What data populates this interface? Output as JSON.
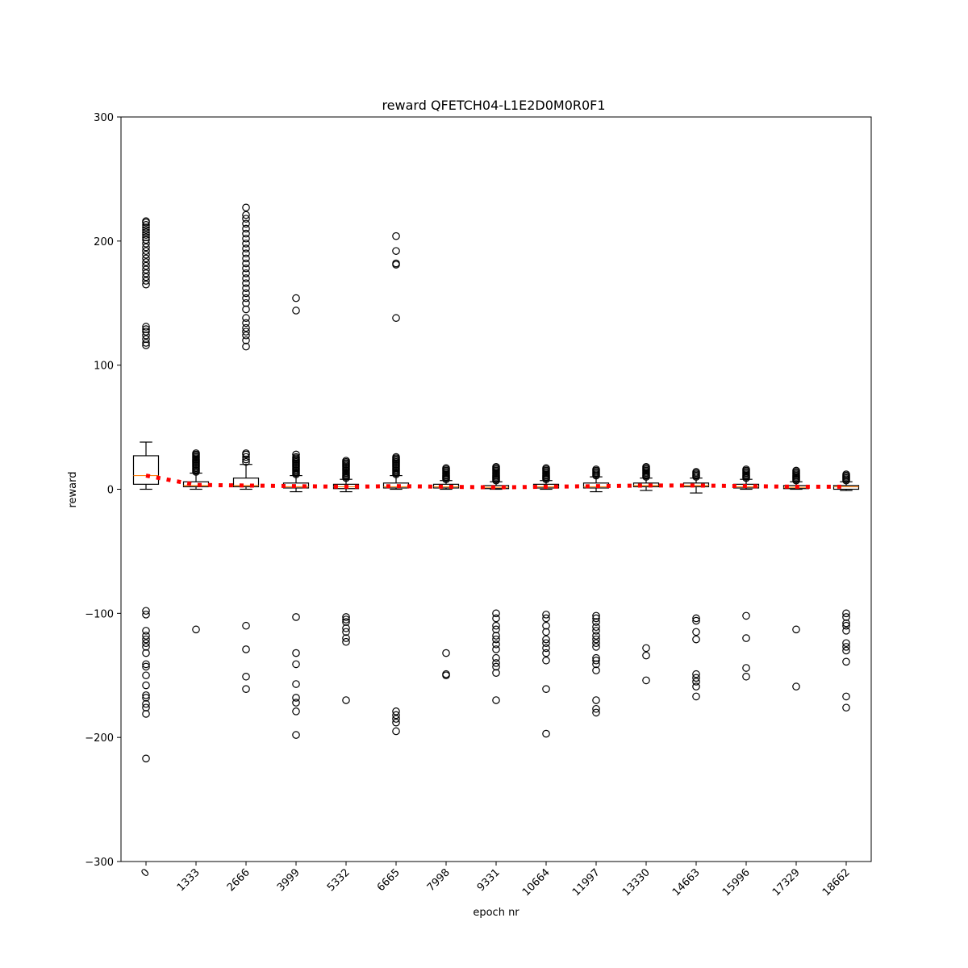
{
  "chart_data": {
    "type": "box",
    "title": "reward QFETCH04-L1E2D0M0R0F1",
    "xlabel": "epoch nr",
    "ylabel": "reward",
    "ylim": [
      -300,
      300
    ],
    "yticks": [
      -300,
      -200,
      -100,
      0,
      100,
      200,
      300
    ],
    "grid": false,
    "categories": [
      "0",
      "1333",
      "2666",
      "3999",
      "5332",
      "6665",
      "7998",
      "9331",
      "10664",
      "11997",
      "13330",
      "14663",
      "15996",
      "17329",
      "18662"
    ],
    "boxes": [
      {
        "q1": 4,
        "median": 11,
        "q3": 27,
        "whisker_low": 0,
        "whisker_high": 38,
        "outliers_high": [
          116,
          118,
          121,
          124,
          127,
          129,
          131,
          165,
          168,
          171,
          174,
          177,
          180,
          183,
          186,
          189,
          192,
          195,
          198,
          201,
          203,
          205,
          207,
          209,
          211,
          213,
          215,
          216
        ],
        "outliers_low": [
          -98,
          -101,
          -114,
          -118,
          -121,
          -124,
          -127,
          -132,
          -141,
          -143,
          -150,
          -158,
          -166,
          -168,
          -173,
          -176,
          -181,
          -217
        ]
      },
      {
        "q1": 2,
        "median": 3,
        "q3": 6,
        "whisker_low": 0,
        "whisker_high": 13,
        "outliers_high": [
          14,
          15,
          16,
          17,
          18,
          19,
          20,
          21,
          22,
          23,
          24,
          25,
          26,
          27,
          28,
          29
        ],
        "outliers_low": [
          -113
        ]
      },
      {
        "q1": 2,
        "median": 3,
        "q3": 9,
        "whisker_low": 0,
        "whisker_high": 20,
        "outliers_high": [
          22,
          24,
          26,
          28,
          29,
          115,
          120,
          124,
          127,
          130,
          134,
          138,
          145,
          150,
          154,
          158,
          162,
          166,
          170,
          174,
          178,
          182,
          186,
          190,
          194,
          198,
          202,
          206,
          210,
          214,
          218,
          221,
          227
        ],
        "outliers_low": [
          -110,
          -129,
          -151,
          -161
        ]
      },
      {
        "q1": 1,
        "median": 2,
        "q3": 5,
        "whisker_low": -2,
        "whisker_high": 11,
        "outliers_high": [
          12,
          13,
          14,
          15,
          16,
          17,
          18,
          19,
          20,
          21,
          22,
          23,
          24,
          25,
          26,
          28,
          144,
          154
        ],
        "outliers_low": [
          -103,
          -132,
          -141,
          -157,
          -168,
          -172,
          -179,
          -198
        ]
      },
      {
        "q1": 0.5,
        "median": 2,
        "q3": 4,
        "whisker_low": -2,
        "whisker_high": 8,
        "outliers_high": [
          9,
          10,
          11,
          12,
          13,
          14,
          15,
          16,
          17,
          18,
          19,
          20,
          21,
          22,
          23
        ],
        "outliers_low": [
          -103,
          -105,
          -107,
          -112,
          -115,
          -120,
          -123,
          -170
        ]
      },
      {
        "q1": 1,
        "median": 2,
        "q3": 5,
        "whisker_low": 0,
        "whisker_high": 11,
        "outliers_high": [
          12,
          13,
          14,
          15,
          16,
          17,
          18,
          19,
          20,
          21,
          22,
          23,
          24,
          25,
          26,
          138,
          181,
          182,
          192,
          204
        ],
        "outliers_low": [
          -179,
          -182,
          -185,
          -188,
          -195
        ]
      },
      {
        "q1": 1,
        "median": 2,
        "q3": 4,
        "whisker_low": 0,
        "whisker_high": 7,
        "outliers_high": [
          8,
          9,
          10,
          11,
          12,
          13,
          14,
          15,
          16,
          17
        ],
        "outliers_low": [
          -132,
          -149,
          -150
        ]
      },
      {
        "q1": 0.5,
        "median": 1.5,
        "q3": 3,
        "whisker_low": 0,
        "whisker_high": 6,
        "outliers_high": [
          7,
          8,
          9,
          10,
          11,
          12,
          13,
          14,
          15,
          16,
          17,
          18
        ],
        "outliers_low": [
          -100,
          -104,
          -110,
          -113,
          -118,
          -121,
          -125,
          -129,
          -136,
          -140,
          -143,
          -148,
          -170
        ]
      },
      {
        "q1": 1,
        "median": 2,
        "q3": 4,
        "whisker_low": 0,
        "whisker_high": 7,
        "outliers_high": [
          8,
          9,
          10,
          11,
          12,
          13,
          14,
          15,
          16,
          17
        ],
        "outliers_low": [
          -101,
          -104,
          -110,
          -115,
          -121,
          -124,
          -128,
          -132,
          -138,
          -161,
          -197
        ]
      },
      {
        "q1": 1,
        "median": 2,
        "q3": 5,
        "whisker_low": -2,
        "whisker_high": 10,
        "outliers_high": [
          11,
          12,
          13,
          14,
          15,
          16
        ],
        "outliers_low": [
          -102,
          -104,
          -107,
          -111,
          -114,
          -118,
          -121,
          -124,
          -127,
          -136,
          -138,
          -141,
          -146,
          -170,
          -177,
          -180
        ]
      },
      {
        "q1": 2,
        "median": 3,
        "q3": 5,
        "whisker_low": -1,
        "whisker_high": 9,
        "outliers_high": [
          10,
          11,
          12,
          13,
          14,
          15,
          16,
          17,
          18
        ],
        "outliers_low": [
          -128,
          -134,
          -154
        ]
      },
      {
        "q1": 2,
        "median": 3,
        "q3": 5,
        "whisker_low": -3,
        "whisker_high": 9,
        "outliers_high": [
          10,
          11,
          12,
          13,
          14
        ],
        "outliers_low": [
          -104,
          -106,
          -115,
          -121,
          -149,
          -152,
          -155,
          -159,
          -167
        ]
      },
      {
        "q1": 1,
        "median": 2,
        "q3": 4,
        "whisker_low": 0,
        "whisker_high": 8,
        "outliers_high": [
          9,
          10,
          11,
          12,
          13,
          14,
          15,
          16
        ],
        "outliers_low": [
          -102,
          -120,
          -144,
          -151
        ]
      },
      {
        "q1": 0.5,
        "median": 1.5,
        "q3": 3,
        "whisker_low": 0,
        "whisker_high": 6,
        "outliers_high": [
          7,
          8,
          9,
          10,
          11,
          12,
          13,
          14,
          15
        ],
        "outliers_low": [
          -113,
          -159
        ]
      },
      {
        "q1": 0,
        "median": 2,
        "q3": 3,
        "whisker_low": -1,
        "whisker_high": 6,
        "outliers_high": [
          7,
          8,
          9,
          10,
          11,
          12
        ],
        "outliers_low": [
          -100,
          -103,
          -108,
          -110,
          -114,
          -124,
          -127,
          -130,
          -139,
          -167,
          -176
        ]
      }
    ],
    "trend_line": {
      "style": "dotted",
      "color": "#ff0000",
      "values": [
        11,
        3.5,
        3,
        2.5,
        2,
        2.5,
        2,
        1.5,
        2,
        2.5,
        3,
        3,
        2.5,
        2,
        2
      ]
    },
    "colors": {
      "box": "#000000",
      "median": "#ff7f0e",
      "trend": "#ff0000"
    }
  }
}
